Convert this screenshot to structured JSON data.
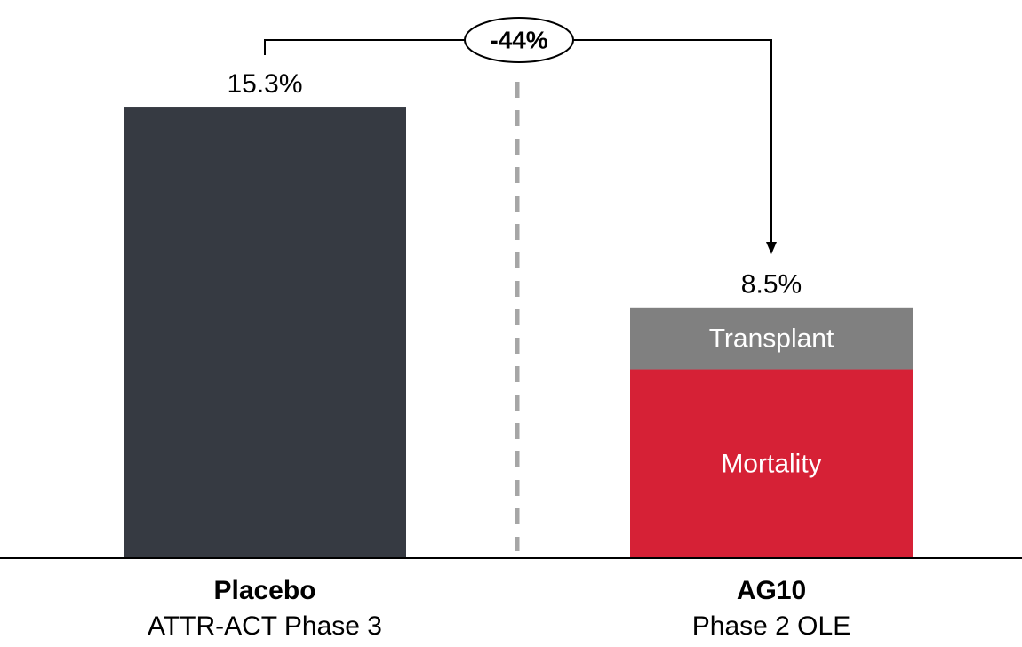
{
  "chart_data": {
    "type": "stacked_bar",
    "annotation": "-44%",
    "ylim": [
      0,
      17
    ],
    "bars": [
      {
        "label": "Placebo",
        "sublabel": "ATTR-ACT Phase 3",
        "total": 15.3,
        "total_label": "15.3%",
        "color": "#363a42",
        "segments": []
      },
      {
        "label": "AG10",
        "sublabel": "Phase 2 OLE",
        "total": 8.5,
        "total_label": "8.5%",
        "segments": [
          {
            "name": "Mortality",
            "value": 6.4,
            "color": "#d62136"
          },
          {
            "name": "Transplant",
            "value": 2.1,
            "color": "#808080"
          }
        ]
      }
    ]
  }
}
